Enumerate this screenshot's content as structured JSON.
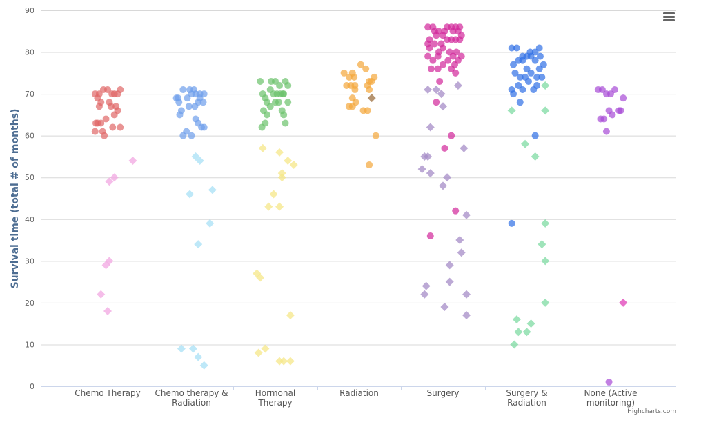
{
  "chart_data": {
    "type": "scatter",
    "subtype": "jitter",
    "ylabel": "Survival time (total # of months)",
    "ylim": [
      0,
      90
    ],
    "yticks": [
      0,
      10,
      20,
      30,
      40,
      50,
      60,
      70,
      80,
      90
    ],
    "grid": true,
    "legend": "none",
    "credits": "Highcharts.com",
    "categories": [
      "Chemo Therapy",
      "Chemo therapy & Radiation",
      "Hormonal Therapy",
      "Radiation",
      "Surgery",
      "Surgery & Radiation",
      "None (Active monitoring)"
    ],
    "category_lines": [
      [
        "Chemo Therapy"
      ],
      [
        "Chemo therapy &",
        "Radiation"
      ],
      [
        "Hormonal",
        "Therapy"
      ],
      [
        "Radiation"
      ],
      [
        "Surgery"
      ],
      [
        "Surgery &",
        "Radiation"
      ],
      [
        "None (Active",
        "monitoring)"
      ]
    ],
    "series": [
      {
        "marker": "circle",
        "colors": [
          "#e06666",
          "#6d9eeb",
          "#6bc26b",
          "#f4a73b",
          "#d1279a",
          "#2f6fe6",
          "#a64ad6"
        ],
        "points": [
          [
            [
              -0.15,
              70
            ],
            [
              -0.12,
              69
            ],
            [
              -0.1,
              67
            ],
            [
              -0.05,
              71
            ],
            [
              0,
              71
            ],
            [
              0.05,
              70
            ],
            [
              0.15,
              71
            ],
            [
              -0.08,
              68
            ],
            [
              0.02,
              68
            ],
            [
              0.04,
              67
            ],
            [
              0.12,
              66
            ],
            [
              0.15,
              62
            ],
            [
              -0.14,
              63
            ],
            [
              -0.12,
              63
            ],
            [
              -0.08,
              63
            ],
            [
              -0.02,
              64
            ],
            [
              -0.15,
              61
            ],
            [
              -0.06,
              61
            ],
            [
              0.08,
              65
            ],
            [
              0.1,
              67
            ],
            [
              0.12,
              70
            ],
            [
              -0.04,
              60
            ],
            [
              0.06,
              62
            ],
            [
              0.08,
              70
            ],
            [
              -0.1,
              70
            ]
          ],
          [
            [
              -0.18,
              69
            ],
            [
              -0.15,
              68
            ],
            [
              -0.12,
              66
            ],
            [
              -0.1,
              71
            ],
            [
              -0.05,
              69
            ],
            [
              0,
              70
            ],
            [
              0.05,
              70
            ],
            [
              0.1,
              70
            ],
            [
              0.15,
              70
            ],
            [
              -0.03,
              67
            ],
            [
              0.04,
              67
            ],
            [
              0.08,
              63
            ],
            [
              0.12,
              62
            ],
            [
              -0.14,
              65
            ],
            [
              -0.1,
              60
            ],
            [
              -0.06,
              61
            ],
            [
              0,
              60
            ],
            [
              0.05,
              64
            ],
            [
              0.08,
              68
            ],
            [
              0.1,
              69
            ],
            [
              0.14,
              68
            ],
            [
              0.15,
              62
            ],
            [
              -0.02,
              71
            ],
            [
              0.03,
              71
            ],
            [
              -0.16,
              69
            ]
          ],
          [
            [
              -0.18,
              73
            ],
            [
              -0.15,
              70
            ],
            [
              -0.12,
              69
            ],
            [
              -0.1,
              68
            ],
            [
              -0.05,
              73
            ],
            [
              0,
              73
            ],
            [
              0.05,
              72
            ],
            [
              0.1,
              70
            ],
            [
              0.15,
              72
            ],
            [
              -0.14,
              66
            ],
            [
              -0.1,
              65
            ],
            [
              -0.06,
              67
            ],
            [
              0,
              68
            ],
            [
              0.04,
              68
            ],
            [
              0.08,
              66
            ],
            [
              0.12,
              63
            ],
            [
              -0.16,
              62
            ],
            [
              -0.12,
              63
            ],
            [
              0.15,
              68
            ],
            [
              0.1,
              65
            ],
            [
              -0.06,
              71
            ],
            [
              0.02,
              70
            ],
            [
              0.06,
              70
            ],
            [
              0.12,
              73
            ],
            [
              -0.02,
              70
            ],
            [
              0.09,
              70
            ]
          ],
          [
            [
              -0.18,
              75
            ],
            [
              -0.12,
              74
            ],
            [
              -0.08,
              75
            ],
            [
              -0.06,
              74
            ],
            [
              0.02,
              77
            ],
            [
              0.08,
              76
            ],
            [
              0.12,
              73
            ],
            [
              0.15,
              73
            ],
            [
              -0.15,
              72
            ],
            [
              -0.1,
              72
            ],
            [
              -0.05,
              71
            ],
            [
              0.1,
              72
            ],
            [
              0.12,
              71
            ],
            [
              0.18,
              74
            ],
            [
              -0.08,
              69
            ],
            [
              -0.04,
              68
            ],
            [
              0.05,
              66
            ],
            [
              0.1,
              66
            ],
            [
              -0.12,
              67
            ],
            [
              -0.08,
              67
            ],
            [
              0.2,
              60
            ],
            [
              0.12,
              53
            ],
            [
              -0.05,
              72
            ]
          ],
          [
            [
              -0.18,
              86
            ],
            [
              -0.12,
              86
            ],
            [
              -0.05,
              85
            ],
            [
              0,
              84
            ],
            [
              0.05,
              86
            ],
            [
              0.1,
              86
            ],
            [
              0.15,
              86
            ],
            [
              0.2,
              86
            ],
            [
              -0.16,
              83
            ],
            [
              -0.1,
              82
            ],
            [
              -0.05,
              80
            ],
            [
              0,
              81
            ],
            [
              0.05,
              83
            ],
            [
              0.1,
              83
            ],
            [
              0.15,
              83
            ],
            [
              0.2,
              83
            ],
            [
              -0.18,
              79
            ],
            [
              -0.12,
              78
            ],
            [
              -0.06,
              79
            ],
            [
              0,
              77
            ],
            [
              0.06,
              78
            ],
            [
              0.12,
              79
            ],
            [
              0.18,
              78
            ],
            [
              -0.16,
              81
            ],
            [
              -0.08,
              84
            ],
            [
              0.08,
              80
            ],
            [
              0.16,
              80
            ],
            [
              -0.14,
              76
            ],
            [
              -0.06,
              76
            ],
            [
              0.1,
              76
            ],
            [
              0.15,
              75
            ],
            [
              0.02,
              85
            ],
            [
              -0.02,
              82
            ],
            [
              0.12,
              85
            ],
            [
              -0.1,
              85
            ],
            [
              0.18,
              85
            ],
            [
              -0.04,
              73
            ],
            [
              0.14,
              77
            ],
            [
              -0.08,
              68
            ],
            [
              0.02,
              57
            ],
            [
              -0.15,
              36
            ],
            [
              0.15,
              42
            ],
            [
              0.1,
              60
            ],
            [
              -0.18,
              82
            ],
            [
              0.22,
              84
            ],
            [
              0.22,
              79
            ]
          ],
          [
            [
              -0.18,
              81
            ],
            [
              -0.12,
              81
            ],
            [
              -0.05,
              79
            ],
            [
              0,
              79
            ],
            [
              0.05,
              79
            ],
            [
              0.1,
              80
            ],
            [
              0.15,
              81
            ],
            [
              -0.16,
              77
            ],
            [
              -0.1,
              78
            ],
            [
              -0.05,
              78
            ],
            [
              0,
              76
            ],
            [
              0.05,
              75
            ],
            [
              0.1,
              78
            ],
            [
              0.15,
              76
            ],
            [
              -0.14,
              75
            ],
            [
              -0.08,
              74
            ],
            [
              0.02,
              73
            ],
            [
              0.08,
              71
            ],
            [
              0.12,
              72
            ],
            [
              -0.18,
              71
            ],
            [
              -0.16,
              70
            ],
            [
              -0.1,
              72
            ],
            [
              -0.05,
              71
            ],
            [
              0.18,
              74
            ],
            [
              0.2,
              77
            ],
            [
              0.04,
              80
            ],
            [
              -0.02,
              74
            ],
            [
              0.12,
              74
            ],
            [
              0.1,
              60
            ],
            [
              -0.18,
              39
            ],
            [
              -0.08,
              68
            ],
            [
              0.16,
              79
            ]
          ],
          [
            [
              -0.15,
              71
            ],
            [
              -0.1,
              71
            ],
            [
              -0.05,
              70
            ],
            [
              0.0,
              70
            ],
            [
              0.05,
              71
            ],
            [
              0.1,
              66
            ],
            [
              -0.12,
              64
            ],
            [
              -0.08,
              64
            ],
            [
              -0.02,
              66
            ],
            [
              0.02,
              65
            ],
            [
              -0.05,
              61
            ],
            [
              0.12,
              66
            ],
            [
              0.15,
              69
            ],
            [
              -0.02,
              1
            ]
          ]
        ]
      },
      {
        "marker": "diamond",
        "colors": [
          "#f2a7e2",
          "#a8e0f5",
          "#f5e788",
          "#9c6f3f",
          "#a58cc7",
          "#7fdba3",
          "#e040b8"
        ],
        "points": [
          [
            [
              0.3,
              54
            ],
            [
              0.08,
              50
            ],
            [
              0.02,
              49
            ],
            [
              0.02,
              30
            ],
            [
              -0.02,
              29
            ],
            [
              -0.08,
              22
            ],
            [
              0,
              18
            ]
          ],
          [
            [
              0.05,
              55
            ],
            [
              0.1,
              54
            ],
            [
              -0.02,
              46
            ],
            [
              0.25,
              47
            ],
            [
              0.22,
              39
            ],
            [
              0.08,
              34
            ],
            [
              -0.12,
              9
            ],
            [
              0.02,
              9
            ],
            [
              0.08,
              7
            ],
            [
              0.15,
              5
            ]
          ],
          [
            [
              -0.15,
              57
            ],
            [
              0.05,
              56
            ],
            [
              0.15,
              54
            ],
            [
              0.22,
              53
            ],
            [
              0.08,
              51
            ],
            [
              0.08,
              50
            ],
            [
              -0.02,
              46
            ],
            [
              -0.08,
              43
            ],
            [
              0.05,
              43
            ],
            [
              -0.22,
              27
            ],
            [
              -0.18,
              26
            ],
            [
              0.18,
              17
            ],
            [
              -0.2,
              8
            ],
            [
              -0.12,
              9
            ],
            [
              0.1,
              6
            ],
            [
              0.18,
              6
            ],
            [
              0.05,
              6
            ]
          ],
          [
            [
              0.15,
              69
            ]
          ],
          [
            [
              -0.18,
              71
            ],
            [
              -0.08,
              71
            ],
            [
              -0.02,
              70
            ],
            [
              0.18,
              72
            ],
            [
              -0.15,
              62
            ],
            [
              0.0,
              67
            ],
            [
              -0.22,
              55
            ],
            [
              -0.18,
              55
            ],
            [
              -0.25,
              52
            ],
            [
              -0.15,
              51
            ],
            [
              0.05,
              50
            ],
            [
              0,
              48
            ],
            [
              0.25,
              57
            ],
            [
              0.28,
              41
            ],
            [
              0.2,
              35
            ],
            [
              0.22,
              32
            ],
            [
              0.08,
              29
            ],
            [
              0.08,
              25
            ],
            [
              -0.2,
              24
            ],
            [
              -0.22,
              22
            ],
            [
              0.28,
              22
            ],
            [
              0.02,
              19
            ],
            [
              0.28,
              17
            ]
          ],
          [
            [
              -0.18,
              66
            ],
            [
              -0.02,
              58
            ],
            [
              0.1,
              55
            ],
            [
              0.22,
              66
            ],
            [
              0.22,
              72
            ],
            [
              0.22,
              39
            ],
            [
              0.18,
              34
            ],
            [
              0.22,
              30
            ],
            [
              0.22,
              20
            ],
            [
              -0.12,
              16
            ],
            [
              0.05,
              15
            ],
            [
              -0.1,
              13
            ],
            [
              0,
              13
            ],
            [
              -0.15,
              10
            ]
          ],
          [
            [
              0.15,
              20
            ]
          ]
        ]
      }
    ]
  },
  "credits": "Highcharts.com",
  "menu_icon": "hamburger-menu-icon"
}
